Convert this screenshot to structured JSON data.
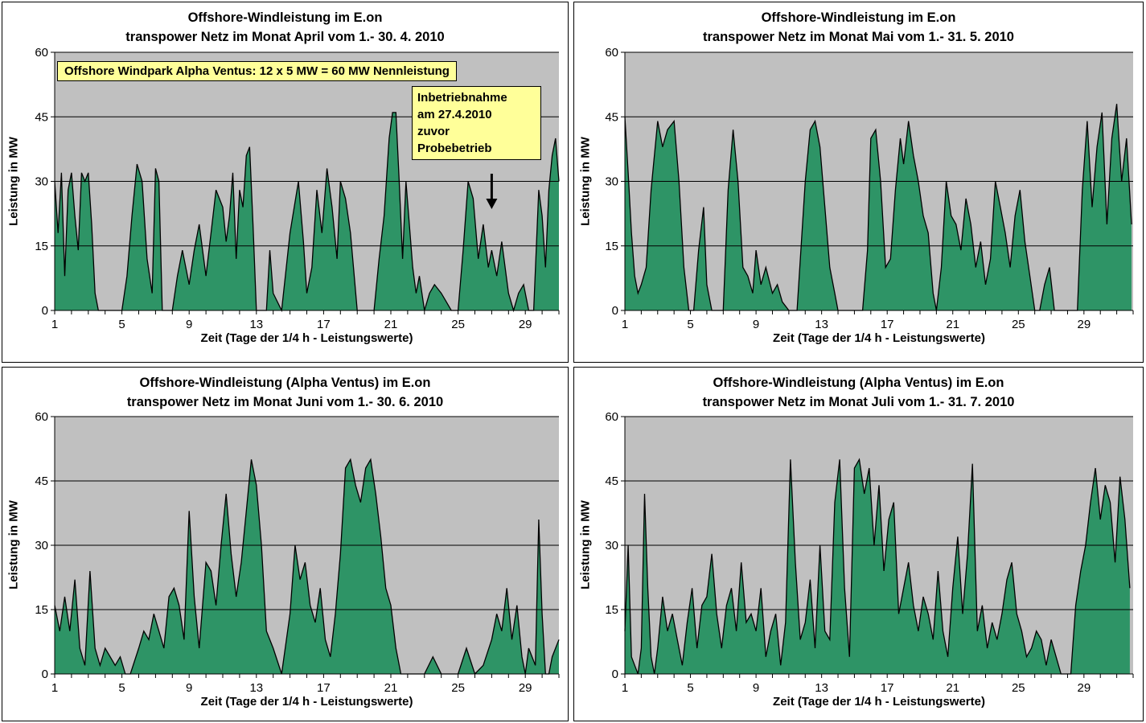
{
  "chart_data": [
    {
      "type": "area",
      "title_line1": "Offshore-Windleistung im E.on",
      "title_line2": "transpower Netz im Monat April vom 1.- 30. 4. 2010",
      "xlabel": "Zeit (Tage der 1/4 h - Leistungswerte)",
      "ylabel": "Leistung in MW",
      "ylim": [
        0,
        60
      ],
      "yticks": [
        "0",
        "15",
        "30",
        "45",
        "60"
      ],
      "xticks": [
        "1",
        "5",
        "9",
        "13",
        "17",
        "21",
        "25",
        "29"
      ],
      "days": 30,
      "grid": "horizontal",
      "fill_color": "#2e9466",
      "line_color": "#000000",
      "plot_bg": "#c0c0c0",
      "legend_box": "Offshore Windpark Alpha Ventus: 12 x 5 MW = 60 MW Nennleistung",
      "annotation": [
        "Inbetriebnahme",
        " am 27.4.2010",
        "zuvor",
        "Probebetrieb"
      ],
      "annotation_arrow_day": 27,
      "x": [
        1,
        1.2,
        1.4,
        1.6,
        1.8,
        2,
        2.2,
        2.4,
        2.6,
        2.8,
        3,
        3.2,
        3.4,
        3.6,
        3.8,
        4,
        4.5,
        5,
        5.3,
        5.6,
        5.9,
        6.2,
        6.5,
        6.8,
        7,
        7.2,
        7.4,
        7.6,
        7.8,
        8,
        8.3,
        8.6,
        9,
        9.3,
        9.6,
        10,
        10.3,
        10.6,
        11,
        11.2,
        11.4,
        11.6,
        11.8,
        12,
        12.2,
        12.4,
        12.6,
        12.8,
        13,
        13.2,
        13.4,
        13.6,
        13.8,
        14,
        14.5,
        15,
        15.5,
        15.8,
        16,
        16.3,
        16.6,
        16.9,
        17.2,
        17.5,
        17.8,
        18,
        18.3,
        18.6,
        19,
        19.5,
        20,
        20.3,
        20.6,
        20.9,
        21.1,
        21.3,
        21.5,
        21.7,
        21.9,
        22.1,
        22.3,
        22.5,
        22.7,
        23,
        23.3,
        23.6,
        24,
        24.3,
        24.6,
        25,
        25.3,
        25.6,
        25.9,
        26.2,
        26.5,
        26.8,
        27,
        27.3,
        27.6,
        28,
        28.3,
        28.6,
        28.9,
        29.2,
        29.5,
        29.8,
        30,
        30.2,
        30.4,
        30.6,
        30.8,
        31
      ],
      "y": [
        30,
        18,
        32,
        8,
        28,
        32,
        22,
        14,
        32,
        30,
        32,
        20,
        4,
        0,
        0,
        0,
        0,
        0,
        8,
        22,
        34,
        30,
        12,
        4,
        33,
        30,
        0,
        0,
        0,
        0,
        8,
        14,
        6,
        14,
        20,
        8,
        18,
        28,
        24,
        16,
        22,
        32,
        12,
        28,
        24,
        36,
        38,
        20,
        0,
        0,
        0,
        0,
        14,
        4,
        0,
        18,
        30,
        16,
        4,
        10,
        28,
        18,
        33,
        24,
        12,
        30,
        26,
        18,
        0,
        0,
        0,
        12,
        22,
        40,
        46,
        46,
        30,
        12,
        30,
        20,
        10,
        4,
        8,
        0,
        4,
        6,
        4,
        2,
        0,
        0,
        14,
        30,
        26,
        12,
        20,
        10,
        14,
        8,
        16,
        4,
        0,
        4,
        6,
        0,
        0,
        28,
        22,
        10,
        28,
        36,
        40,
        30
      ]
    },
    {
      "type": "area",
      "title_line1": "Offshore-Windleistung im E.on",
      "title_line2": "transpower Netz im Monat Mai vom 1.- 31. 5. 2010",
      "xlabel": "Zeit (Tage der 1/4 h - Leistungswerte)",
      "ylabel": "Leistung in MW",
      "ylim": [
        0,
        60
      ],
      "yticks": [
        "0",
        "15",
        "30",
        "45",
        "60"
      ],
      "xticks": [
        "1",
        "5",
        "9",
        "13",
        "17",
        "21",
        "25",
        "29"
      ],
      "days": 31,
      "grid": "horizontal",
      "fill_color": "#2e9466",
      "line_color": "#000000",
      "plot_bg": "#c0c0c0",
      "x": [
        1,
        1.2,
        1.4,
        1.6,
        1.8,
        2,
        2.3,
        2.6,
        3,
        3.3,
        3.6,
        4,
        4.3,
        4.6,
        4.9,
        5.2,
        5.5,
        5.8,
        6,
        6.3,
        6.6,
        7,
        7.3,
        7.6,
        7.9,
        8.2,
        8.5,
        8.8,
        9,
        9.3,
        9.6,
        10,
        10.3,
        10.6,
        11,
        11.5,
        12,
        12.3,
        12.6,
        12.9,
        13.2,
        13.5,
        13.8,
        14,
        14.5,
        15,
        15.5,
        15.8,
        16,
        16.3,
        16.6,
        16.9,
        17.2,
        17.5,
        17.8,
        18,
        18.3,
        18.6,
        18.9,
        19.2,
        19.5,
        19.8,
        20,
        20.3,
        20.6,
        20.9,
        21.2,
        21.5,
        21.8,
        22.1,
        22.4,
        22.7,
        23,
        23.3,
        23.6,
        23.9,
        24.2,
        24.5,
        24.8,
        25.1,
        25.4,
        25.7,
        26,
        26.3,
        26.6,
        26.9,
        27.2,
        27.5,
        27.8,
        28,
        28.3,
        28.6,
        28.9,
        29.2,
        29.5,
        29.8,
        30.1,
        30.4,
        30.7,
        31,
        31.3,
        31.6,
        31.9
      ],
      "y": [
        45,
        32,
        18,
        8,
        4,
        6,
        10,
        28,
        44,
        38,
        42,
        44,
        30,
        10,
        0,
        0,
        14,
        24,
        6,
        0,
        0,
        0,
        28,
        42,
        30,
        10,
        8,
        4,
        14,
        6,
        10,
        4,
        6,
        2,
        0,
        0,
        30,
        42,
        44,
        38,
        24,
        10,
        4,
        0,
        0,
        0,
        0,
        14,
        40,
        42,
        30,
        10,
        12,
        28,
        40,
        34,
        44,
        36,
        30,
        22,
        18,
        4,
        0,
        10,
        30,
        22,
        20,
        14,
        26,
        20,
        10,
        16,
        6,
        12,
        30,
        24,
        18,
        10,
        22,
        28,
        16,
        8,
        0,
        0,
        6,
        10,
        0,
        0,
        0,
        0,
        0,
        0,
        28,
        44,
        24,
        38,
        46,
        20,
        40,
        48,
        30,
        40,
        20
      ]
    },
    {
      "type": "area",
      "title_line1": "Offshore-Windleistung (Alpha Ventus) im E.on",
      "title_line2": "transpower Netz im Monat Juni vom 1.- 30. 6. 2010",
      "xlabel": "Zeit (Tage der 1/4 h - Leistungswerte)",
      "ylabel": "Leistung in MW",
      "ylim": [
        0,
        60
      ],
      "yticks": [
        "0",
        "15",
        "30",
        "45",
        "60"
      ],
      "xticks": [
        "1",
        "5",
        "9",
        "13",
        "17",
        "21",
        "25",
        "29"
      ],
      "days": 30,
      "grid": "horizontal",
      "fill_color": "#2e9466",
      "line_color": "#000000",
      "plot_bg": "#c0c0c0",
      "x": [
        1,
        1.3,
        1.6,
        1.9,
        2.2,
        2.5,
        2.8,
        3.1,
        3.4,
        3.7,
        4,
        4.3,
        4.6,
        4.9,
        5.2,
        5.5,
        6,
        6.3,
        6.6,
        6.9,
        7.2,
        7.5,
        7.8,
        8.1,
        8.4,
        8.7,
        9,
        9.3,
        9.6,
        10,
        10.3,
        10.6,
        10.9,
        11.2,
        11.5,
        11.8,
        12.1,
        12.4,
        12.7,
        13,
        13.3,
        13.6,
        14,
        14.5,
        15,
        15.3,
        15.6,
        15.9,
        16.2,
        16.5,
        16.8,
        17.1,
        17.4,
        17.7,
        18,
        18.3,
        18.6,
        18.9,
        19.2,
        19.5,
        19.8,
        20.1,
        20.4,
        20.7,
        21,
        21.3,
        21.6,
        22,
        22.5,
        23,
        23.5,
        24,
        24.5,
        25,
        25.5,
        26,
        26.5,
        27,
        27.3,
        27.6,
        27.9,
        28.2,
        28.5,
        28.8,
        29,
        29.2,
        29.4,
        29.6,
        29.8,
        30,
        30.2,
        30.4,
        30.6,
        30.8,
        31
      ],
      "y": [
        16,
        10,
        18,
        10,
        22,
        6,
        2,
        24,
        6,
        2,
        6,
        4,
        2,
        4,
        0,
        0,
        6,
        10,
        8,
        14,
        10,
        6,
        18,
        20,
        16,
        8,
        38,
        18,
        6,
        26,
        24,
        16,
        30,
        42,
        28,
        18,
        26,
        38,
        50,
        44,
        30,
        10,
        6,
        0,
        14,
        30,
        22,
        26,
        16,
        12,
        20,
        8,
        4,
        14,
        28,
        48,
        50,
        44,
        40,
        48,
        50,
        42,
        32,
        20,
        16,
        6,
        0,
        0,
        0,
        0,
        4,
        0,
        0,
        0,
        6,
        0,
        2,
        8,
        14,
        10,
        20,
        8,
        16,
        4,
        0,
        6,
        4,
        2,
        36,
        14,
        0,
        0,
        4,
        6,
        8
      ]
    },
    {
      "type": "area",
      "title_line1": "Offshore-Windleistung (Alpha Ventus) im E.on",
      "title_line2": "transpower Netz im Monat Juli vom 1.- 31. 7. 2010",
      "xlabel": "Zeit (Tage der 1/4 h - Leistungswerte)",
      "ylabel": "Leistung in MW",
      "ylim": [
        0,
        60
      ],
      "yticks": [
        "0",
        "15",
        "30",
        "45",
        "60"
      ],
      "xticks": [
        "1",
        "5",
        "9",
        "13",
        "17",
        "21",
        "25",
        "29"
      ],
      "days": 31,
      "grid": "horizontal",
      "fill_color": "#2e9466",
      "line_color": "#000000",
      "plot_bg": "#c0c0c0",
      "x": [
        1,
        1.2,
        1.4,
        1.6,
        1.8,
        2,
        2.2,
        2.4,
        2.6,
        2.8,
        3,
        3.3,
        3.6,
        3.9,
        4.2,
        4.5,
        4.8,
        5.1,
        5.4,
        5.7,
        6,
        6.3,
        6.6,
        6.9,
        7.2,
        7.5,
        7.8,
        8.1,
        8.4,
        8.7,
        9,
        9.3,
        9.6,
        9.9,
        10.2,
        10.5,
        10.8,
        11.1,
        11.4,
        11.7,
        12,
        12.3,
        12.6,
        12.9,
        13.2,
        13.5,
        13.8,
        14.1,
        14.4,
        14.7,
        15,
        15.3,
        15.6,
        15.9,
        16.2,
        16.5,
        16.8,
        17.1,
        17.4,
        17.7,
        18,
        18.3,
        18.6,
        18.9,
        19.2,
        19.5,
        19.8,
        20.1,
        20.4,
        20.7,
        21,
        21.3,
        21.6,
        21.9,
        22.2,
        22.5,
        22.8,
        23.1,
        23.4,
        23.7,
        24,
        24.3,
        24.6,
        24.9,
        25.2,
        25.5,
        25.8,
        26.1,
        26.4,
        26.7,
        27,
        27.3,
        27.6,
        27.9,
        28.2,
        28.5,
        28.8,
        29.1,
        29.4,
        29.7,
        30,
        30.3,
        30.6,
        30.9,
        31.2,
        31.5,
        31.8
      ],
      "y": [
        10,
        30,
        4,
        2,
        0,
        6,
        42,
        20,
        4,
        0,
        6,
        18,
        10,
        14,
        8,
        2,
        12,
        20,
        6,
        16,
        18,
        28,
        14,
        6,
        16,
        20,
        10,
        26,
        12,
        14,
        10,
        20,
        4,
        10,
        14,
        2,
        12,
        50,
        26,
        8,
        12,
        22,
        6,
        30,
        10,
        8,
        40,
        50,
        20,
        4,
        48,
        50,
        42,
        48,
        30,
        44,
        24,
        36,
        40,
        14,
        20,
        26,
        16,
        10,
        18,
        14,
        8,
        24,
        10,
        4,
        20,
        32,
        14,
        28,
        49,
        10,
        16,
        6,
        12,
        8,
        14,
        22,
        26,
        14,
        10,
        4,
        6,
        10,
        8,
        2,
        8,
        4,
        0,
        0,
        0,
        16,
        24,
        30,
        40,
        48,
        36,
        44,
        40,
        26,
        46,
        36,
        20
      ]
    }
  ]
}
